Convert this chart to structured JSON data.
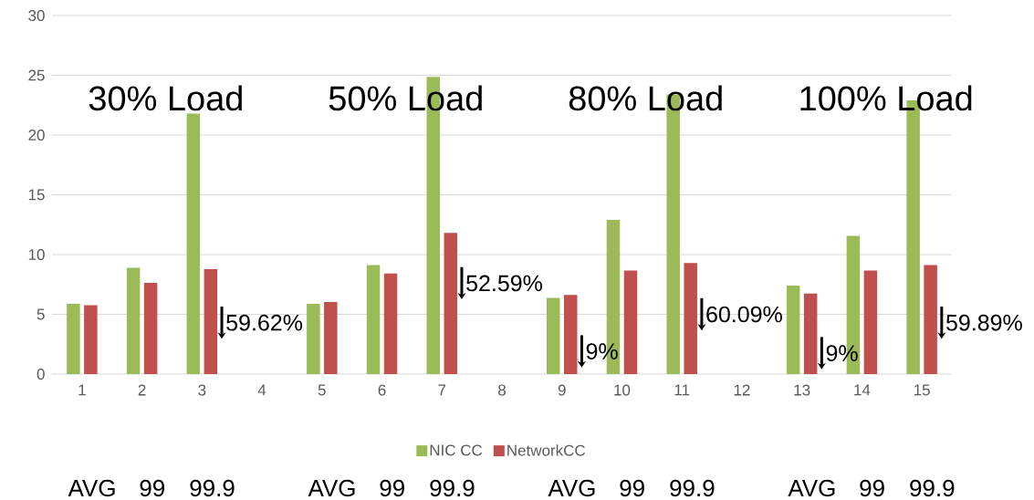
{
  "chart_data": {
    "type": "bar",
    "categories": [
      "1",
      "2",
      "3",
      "4",
      "5",
      "6",
      "7",
      "8",
      "9",
      "10",
      "11",
      "12",
      "13",
      "14",
      "15"
    ],
    "series": [
      {
        "name": "NIC CC",
        "color": "#9bbb59",
        "values": [
          5.87,
          8.89,
          21.8,
          null,
          5.87,
          9.13,
          24.86,
          null,
          6.37,
          12.9,
          23.4,
          null,
          7.4,
          11.57,
          22.9
        ]
      },
      {
        "name": "NetworkCC",
        "color": "#c0504d",
        "values": [
          5.76,
          7.64,
          8.78,
          null,
          6.03,
          8.42,
          11.82,
          null,
          6.62,
          8.67,
          9.29,
          null,
          6.73,
          8.67,
          9.12
        ]
      }
    ],
    "ylim": [
      0,
      30
    ],
    "yticks": [
      0,
      5,
      10,
      15,
      20,
      25,
      30
    ],
    "grid": "y",
    "legend": "bottom",
    "annotations": [
      "30% Load",
      "50% Load",
      "80% Load",
      "100% Load",
      "AVG",
      "99",
      "99.9",
      "AVG",
      "99",
      "99.9",
      "AVG",
      "99",
      "99.9",
      "AVG",
      "99",
      "99.9",
      {
        "text": "59.62%",
        "x": "3",
        "y": 4.3
      },
      {
        "text": "52.59%",
        "x": "7",
        "y": 7.6
      },
      {
        "text": "9%",
        "x": "9",
        "y": 1.9
      },
      {
        "text": "60.09%",
        "x": "11",
        "y": 5.0
      },
      {
        "text": "9%",
        "x": "13",
        "y": 1.75
      },
      {
        "text": "59.89%",
        "x": "15",
        "y": 4.3
      }
    ]
  }
}
